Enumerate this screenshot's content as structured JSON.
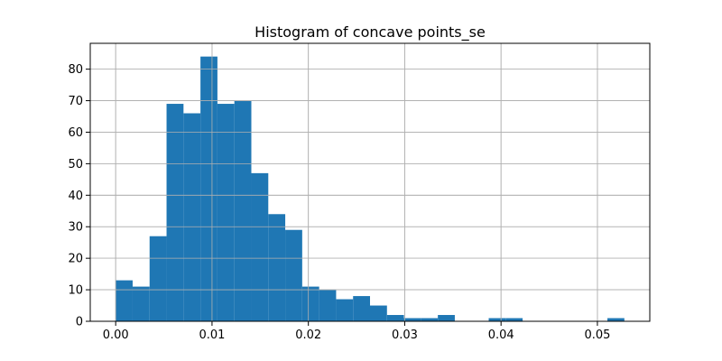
{
  "chart_data": {
    "type": "bar",
    "subtype": "histogram",
    "title": "Histogram of concave points_se",
    "xlabel": "",
    "ylabel": "",
    "bin_width": 0.00176,
    "x_bin_edges_start": 0.0,
    "bins": [
      {
        "x0": 0.0,
        "x1": 0.00176,
        "count": 13
      },
      {
        "x0": 0.00176,
        "x1": 0.00352,
        "count": 11
      },
      {
        "x0": 0.00352,
        "x1": 0.00528,
        "count": 27
      },
      {
        "x0": 0.00528,
        "x1": 0.00704,
        "count": 69
      },
      {
        "x0": 0.00704,
        "x1": 0.0088,
        "count": 66
      },
      {
        "x0": 0.0088,
        "x1": 0.01056,
        "count": 84
      },
      {
        "x0": 0.01056,
        "x1": 0.01232,
        "count": 69
      },
      {
        "x0": 0.01232,
        "x1": 0.01408,
        "count": 70
      },
      {
        "x0": 0.01408,
        "x1": 0.01584,
        "count": 47
      },
      {
        "x0": 0.01584,
        "x1": 0.0176,
        "count": 34
      },
      {
        "x0": 0.0176,
        "x1": 0.01936,
        "count": 29
      },
      {
        "x0": 0.01936,
        "x1": 0.02112,
        "count": 11
      },
      {
        "x0": 0.02112,
        "x1": 0.02288,
        "count": 10
      },
      {
        "x0": 0.02288,
        "x1": 0.02464,
        "count": 7
      },
      {
        "x0": 0.02464,
        "x1": 0.0264,
        "count": 8
      },
      {
        "x0": 0.0264,
        "x1": 0.02816,
        "count": 5
      },
      {
        "x0": 0.02816,
        "x1": 0.02992,
        "count": 2
      },
      {
        "x0": 0.02992,
        "x1": 0.03168,
        "count": 1
      },
      {
        "x0": 0.03168,
        "x1": 0.03344,
        "count": 1
      },
      {
        "x0": 0.03344,
        "x1": 0.0352,
        "count": 2
      },
      {
        "x0": 0.0352,
        "x1": 0.03696,
        "count": 0
      },
      {
        "x0": 0.03696,
        "x1": 0.03872,
        "count": 0
      },
      {
        "x0": 0.03872,
        "x1": 0.04048,
        "count": 1
      },
      {
        "x0": 0.04048,
        "x1": 0.04224,
        "count": 1
      },
      {
        "x0": 0.04224,
        "x1": 0.044,
        "count": 0
      },
      {
        "x0": 0.044,
        "x1": 0.04576,
        "count": 0
      },
      {
        "x0": 0.04576,
        "x1": 0.04752,
        "count": 0
      },
      {
        "x0": 0.04752,
        "x1": 0.04928,
        "count": 0
      },
      {
        "x0": 0.04928,
        "x1": 0.05104,
        "count": 0
      },
      {
        "x0": 0.05104,
        "x1": 0.0528,
        "count": 1
      }
    ],
    "xlim": [
      -0.00264,
      0.05544
    ],
    "ylim": [
      0,
      88.2
    ],
    "x_ticks": [
      0.0,
      0.01,
      0.02,
      0.03,
      0.04,
      0.05
    ],
    "x_tick_labels": [
      "0.00",
      "0.01",
      "0.02",
      "0.03",
      "0.04",
      "0.05"
    ],
    "y_ticks": [
      0,
      10,
      20,
      30,
      40,
      50,
      60,
      70,
      80
    ],
    "y_tick_labels": [
      "0",
      "10",
      "20",
      "30",
      "40",
      "50",
      "60",
      "70",
      "80"
    ],
    "grid": true,
    "legend": "none",
    "colors": {
      "bar": "#1f77b4",
      "grid": "#b0b0b0",
      "axis": "#000000",
      "background": "#ffffff"
    }
  }
}
